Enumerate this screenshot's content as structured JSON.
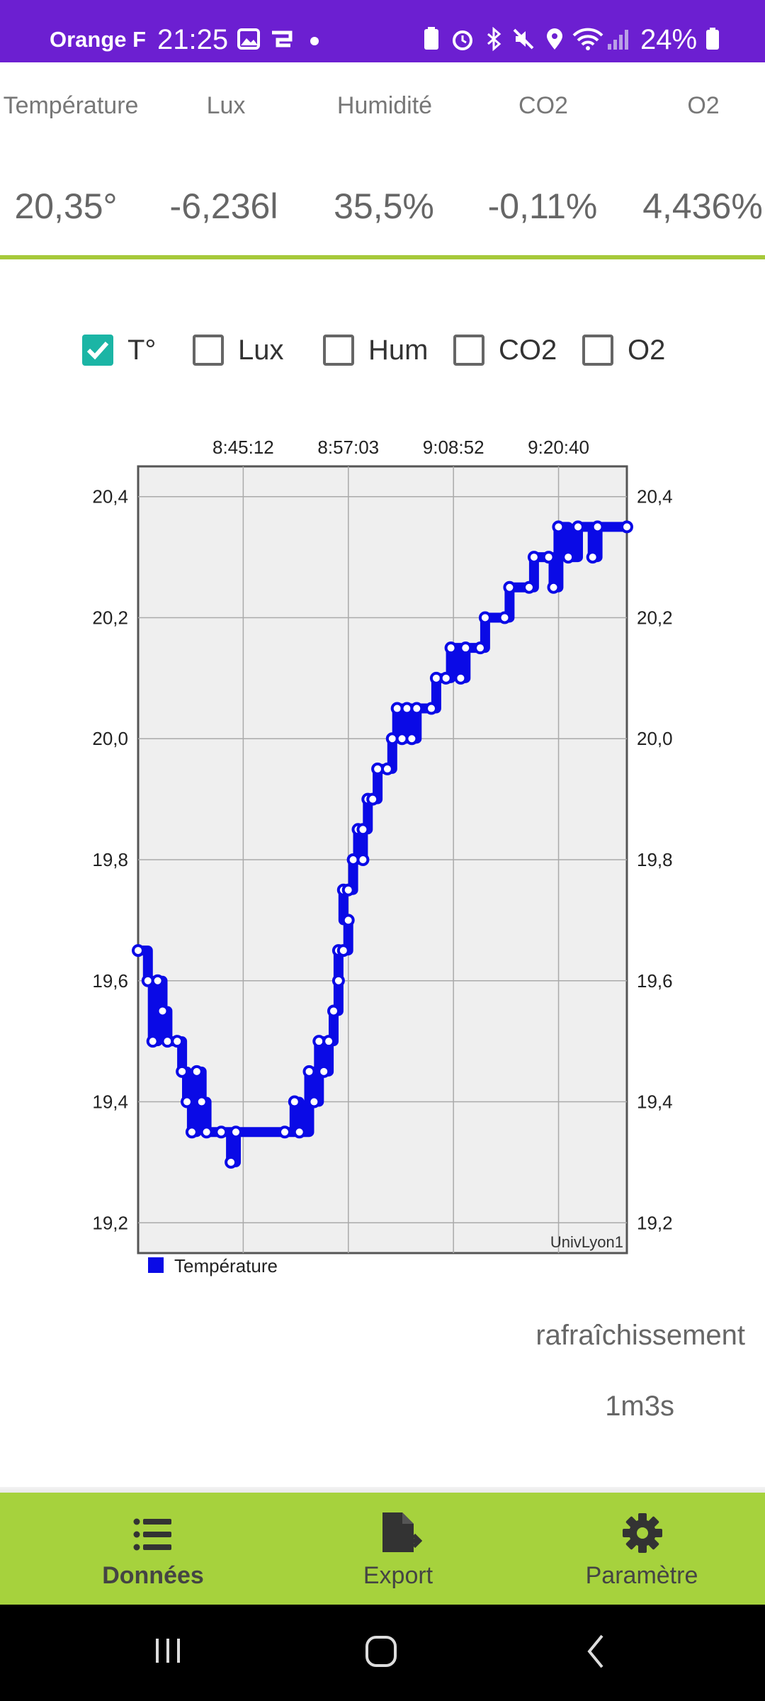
{
  "status_bar": {
    "carrier": "Orange F",
    "time": "21:25",
    "battery": "24%"
  },
  "metrics": [
    {
      "label": "Température",
      "value": "20,35°"
    },
    {
      "label": "Lux",
      "value": "-6,236l"
    },
    {
      "label": "Humidité",
      "value": "35,5%"
    },
    {
      "label": "CO2",
      "value": "-0,11%"
    },
    {
      "label": "O2",
      "value": "4,436%"
    }
  ],
  "checkboxes": [
    {
      "label": "T°",
      "checked": true
    },
    {
      "label": "Lux",
      "checked": false
    },
    {
      "label": "Hum",
      "checked": false
    },
    {
      "label": "CO2",
      "checked": false
    },
    {
      "label": "O2",
      "checked": false
    }
  ],
  "chart_data": {
    "type": "line",
    "x_tick_labels": [
      "8:45:12",
      "8:57:03",
      "9:08:52",
      "9:20:40"
    ],
    "y_tick_labels": [
      "20,4",
      "20,2",
      "20,0",
      "19,8",
      "19,6",
      "19,4",
      "19,2"
    ],
    "y_ticks": [
      20.4,
      20.2,
      20.0,
      19.8,
      19.6,
      19.4,
      19.2
    ],
    "ylim": [
      19.15,
      20.45
    ],
    "grid": true,
    "legend_position": "bottom-left",
    "watermark": "UnivLyon1",
    "series_color": "#0a0ae6",
    "series": [
      {
        "name": "Température",
        "points": [
          [
            0,
            19.65
          ],
          [
            0.02,
            19.6
          ],
          [
            0.03,
            19.5
          ],
          [
            0.04,
            19.6
          ],
          [
            0.05,
            19.55
          ],
          [
            0.06,
            19.5
          ],
          [
            0.08,
            19.5
          ],
          [
            0.09,
            19.45
          ],
          [
            0.1,
            19.4
          ],
          [
            0.11,
            19.35
          ],
          [
            0.12,
            19.45
          ],
          [
            0.13,
            19.4
          ],
          [
            0.14,
            19.35
          ],
          [
            0.17,
            19.35
          ],
          [
            0.19,
            19.3
          ],
          [
            0.2,
            19.35
          ],
          [
            0.3,
            19.35
          ],
          [
            0.32,
            19.4
          ],
          [
            0.33,
            19.35
          ],
          [
            0.35,
            19.45
          ],
          [
            0.36,
            19.4
          ],
          [
            0.37,
            19.5
          ],
          [
            0.38,
            19.45
          ],
          [
            0.39,
            19.5
          ],
          [
            0.4,
            19.55
          ],
          [
            0.41,
            19.6
          ],
          [
            0.41,
            19.65
          ],
          [
            0.42,
            19.65
          ],
          [
            0.43,
            19.7
          ],
          [
            0.42,
            19.75
          ],
          [
            0.43,
            19.75
          ],
          [
            0.44,
            19.8
          ],
          [
            0.45,
            19.85
          ],
          [
            0.46,
            19.8
          ],
          [
            0.46,
            19.85
          ],
          [
            0.47,
            19.9
          ],
          [
            0.48,
            19.9
          ],
          [
            0.49,
            19.95
          ],
          [
            0.51,
            19.95
          ],
          [
            0.52,
            20.0
          ],
          [
            0.53,
            20.05
          ],
          [
            0.54,
            20.0
          ],
          [
            0.55,
            20.05
          ],
          [
            0.56,
            20.0
          ],
          [
            0.57,
            20.05
          ],
          [
            0.6,
            20.05
          ],
          [
            0.61,
            20.1
          ],
          [
            0.63,
            20.1
          ],
          [
            0.64,
            20.15
          ],
          [
            0.66,
            20.1
          ],
          [
            0.67,
            20.15
          ],
          [
            0.7,
            20.15
          ],
          [
            0.71,
            20.2
          ],
          [
            0.75,
            20.2
          ],
          [
            0.76,
            20.25
          ],
          [
            0.8,
            20.25
          ],
          [
            0.81,
            20.3
          ],
          [
            0.84,
            20.3
          ],
          [
            0.85,
            20.25
          ],
          [
            0.86,
            20.35
          ],
          [
            0.88,
            20.3
          ],
          [
            0.9,
            20.35
          ],
          [
            0.93,
            20.3
          ],
          [
            0.94,
            20.35
          ],
          [
            1.0,
            20.35
          ]
        ]
      }
    ]
  },
  "refresh": {
    "label": "rafraîchissement",
    "value": "1m3s"
  },
  "bottom_nav": [
    {
      "label": "Données",
      "icon": "list-icon",
      "active": true
    },
    {
      "label": "Export",
      "icon": "file-export-icon",
      "active": false
    },
    {
      "label": "Paramètre",
      "icon": "gear-icon",
      "active": false
    }
  ]
}
